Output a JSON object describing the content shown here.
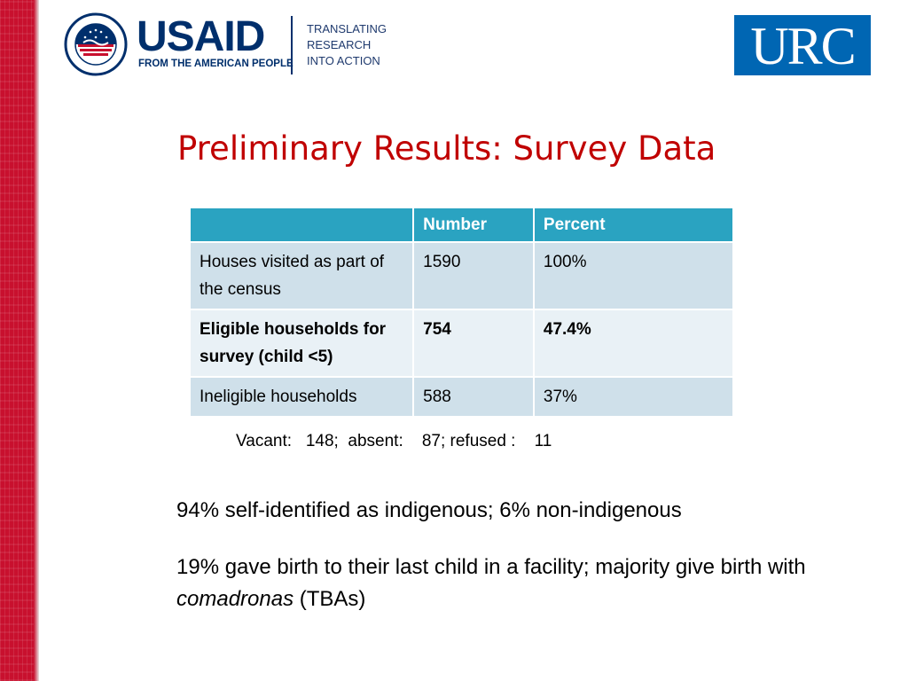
{
  "logos": {
    "usaid_word": "USAID",
    "usaid_tagline": "FROM THE AMERICAN PEOPLE",
    "translating": [
      "TRANSLATING",
      "RESEARCH",
      "INTO ACTION"
    ],
    "urc": "URC"
  },
  "title": "Preliminary Results: Survey Data",
  "table": {
    "headers": [
      "",
      "Number",
      "Percent"
    ],
    "rows": [
      {
        "label": "Houses visited as part of the census",
        "number": "1590",
        "percent": "100%"
      },
      {
        "label": "Eligible households for survey (child <5)",
        "number": "754",
        "percent": "47.4%"
      },
      {
        "label": "Ineligible households",
        "number": "588",
        "percent": "37%"
      }
    ]
  },
  "note": "Vacant:   148;  absent:    87; refused :    11",
  "bullets": {
    "first": "94% self-identified as indigenous; 6% non-indigenous",
    "second_prefix": "19% gave birth to their last child in a facility; majority give birth with ",
    "second_italic": "comadronas",
    "second_suffix": " (TBAs)"
  },
  "colors": {
    "title": "#c00000",
    "header_fill": "#2aa3c1",
    "row_fill": "#cfe0ea",
    "alt_row_fill": "#e9f1f6",
    "stripe": "#c8102e",
    "usaid_blue": "#002f6c",
    "urc_blue": "#0066b3"
  }
}
